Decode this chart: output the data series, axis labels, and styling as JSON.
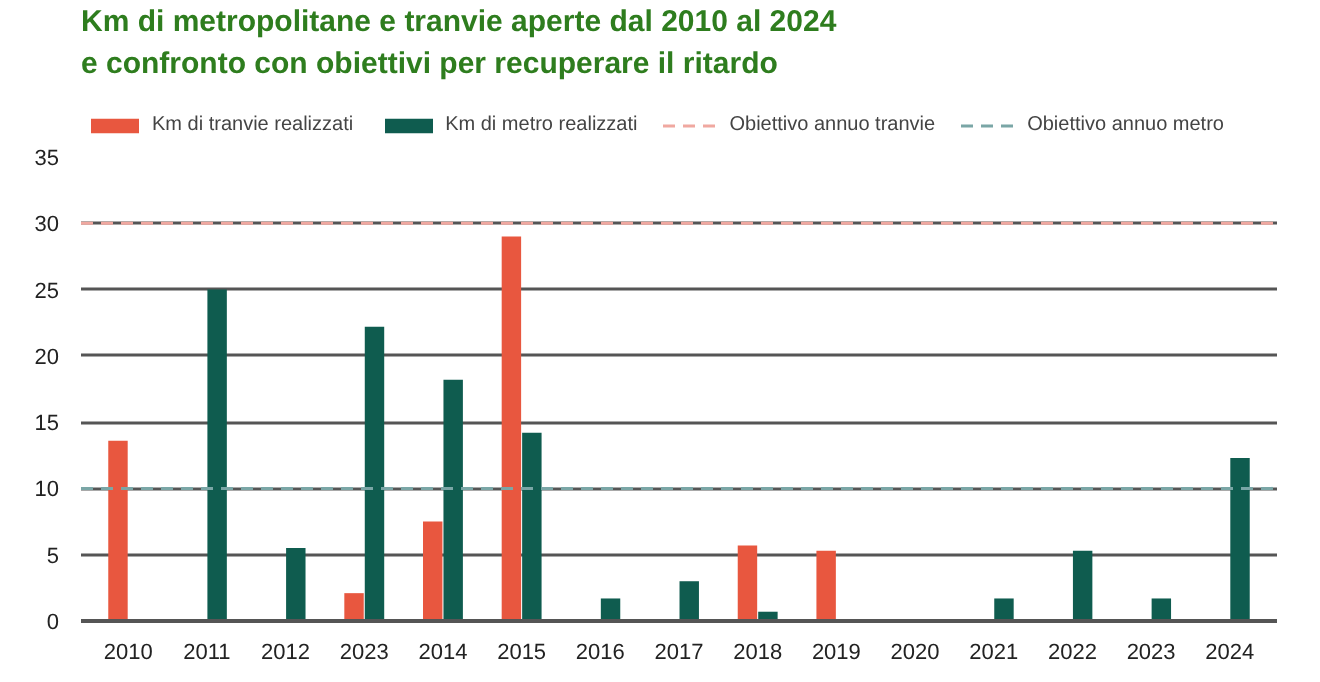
{
  "chart_data": {
    "type": "bar",
    "title": "Km di metropolitane e tranvie aperte dal 2010 al 2024",
    "subtitle": "e confronto con obiettivi per recuperare il ritardo",
    "categories": [
      "2010",
      "2011",
      "2012",
      "2023",
      "2014",
      "2015",
      "2016",
      "2017",
      "2018",
      "2019",
      "2020",
      "2021",
      "2022",
      "2023",
      "2024"
    ],
    "series": [
      {
        "name": "Km di tranvie realizzati",
        "color": "#e8573f",
        "values": [
          13.6,
          0,
          0,
          2.1,
          7.5,
          29.0,
          0,
          0,
          5.7,
          5.3,
          0,
          0,
          0,
          0,
          0
        ]
      },
      {
        "name": "Km di metro realizzati",
        "color": "#0f5c4f",
        "values": [
          0,
          25.0,
          5.5,
          22.2,
          18.2,
          14.2,
          1.7,
          3.0,
          0.7,
          0,
          0,
          1.7,
          5.3,
          1.7,
          12.3
        ]
      }
    ],
    "ref_lines": [
      {
        "axis": "y",
        "value": 30,
        "label": "Obiettivo annuo tranvie",
        "color": "#f0a8a0",
        "line_style": "dashed"
      },
      {
        "axis": "y",
        "value": 10,
        "label": "Obiettivo annuo metro",
        "color": "#7aa6a6",
        "line_style": "dashed"
      }
    ],
    "ylim": [
      0,
      35
    ],
    "yticks": [
      0,
      5,
      10,
      15,
      20,
      25,
      30,
      35
    ],
    "grid": "y",
    "legend": "top"
  }
}
